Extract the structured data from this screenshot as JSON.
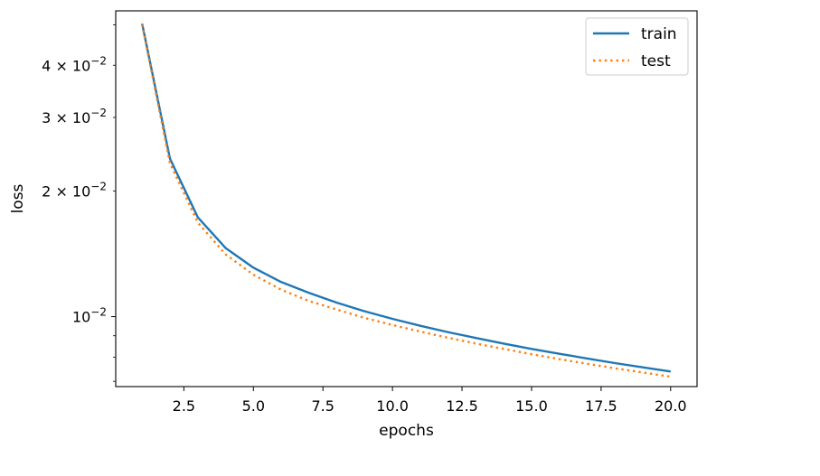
{
  "chart_data": {
    "type": "line",
    "xlabel": "epochs",
    "ylabel": "loss",
    "yscale": "log",
    "xlim": [
      0.05,
      20.95
    ],
    "ylim": [
      0.0068,
      0.054
    ],
    "x_ticks": [
      2.5,
      5.0,
      7.5,
      10.0,
      12.5,
      15.0,
      17.5,
      20.0
    ],
    "x_tick_labels": [
      "2.5",
      "5.0",
      "7.5",
      "10.0",
      "12.5",
      "15.0",
      "17.5",
      "20.0"
    ],
    "y_major_ticks": [
      {
        "value": 0.01,
        "mantissa": "",
        "exponent": "−2"
      }
    ],
    "y_labeled_minor_ticks": [
      {
        "value": 0.02,
        "mantissa": "2",
        "exponent": "−2"
      },
      {
        "value": 0.03,
        "mantissa": "3",
        "exponent": "−2"
      },
      {
        "value": 0.04,
        "mantissa": "4",
        "exponent": "−2"
      }
    ],
    "y_unlabeled_minor_ticks": [
      0.007,
      0.008,
      0.009,
      0.05
    ],
    "tick_base": "10",
    "times_sign": "×",
    "grid": false,
    "legend_position": "upper right",
    "series": [
      {
        "name": "train",
        "color": "#1f77b4",
        "linestyle": "solid",
        "x": [
          1,
          2,
          3,
          4,
          5,
          6,
          7,
          8,
          9,
          10,
          11,
          12,
          13,
          14,
          15,
          16,
          17,
          18,
          19,
          20
        ],
        "values": [
          0.0503,
          0.0239,
          0.0173,
          0.0146,
          0.0131,
          0.0121,
          0.0114,
          0.0108,
          0.0103,
          0.00988,
          0.00951,
          0.00918,
          0.00889,
          0.00862,
          0.00837,
          0.00815,
          0.00794,
          0.00774,
          0.00756,
          0.00739
        ]
      },
      {
        "name": "test",
        "color": "#ff7f0e",
        "linestyle": "dotted",
        "x": [
          1,
          2,
          3,
          4,
          5,
          6,
          7,
          8,
          9,
          10,
          11,
          12,
          13,
          14,
          15,
          16,
          17,
          18,
          19,
          20
        ],
        "values": [
          0.05,
          0.0233,
          0.0168,
          0.0141,
          0.0126,
          0.0116,
          0.0109,
          0.0104,
          0.00993,
          0.00955,
          0.00921,
          0.0089,
          0.00862,
          0.00837,
          0.00813,
          0.00791,
          0.00771,
          0.00752,
          0.00735,
          0.00718
        ]
      }
    ]
  }
}
